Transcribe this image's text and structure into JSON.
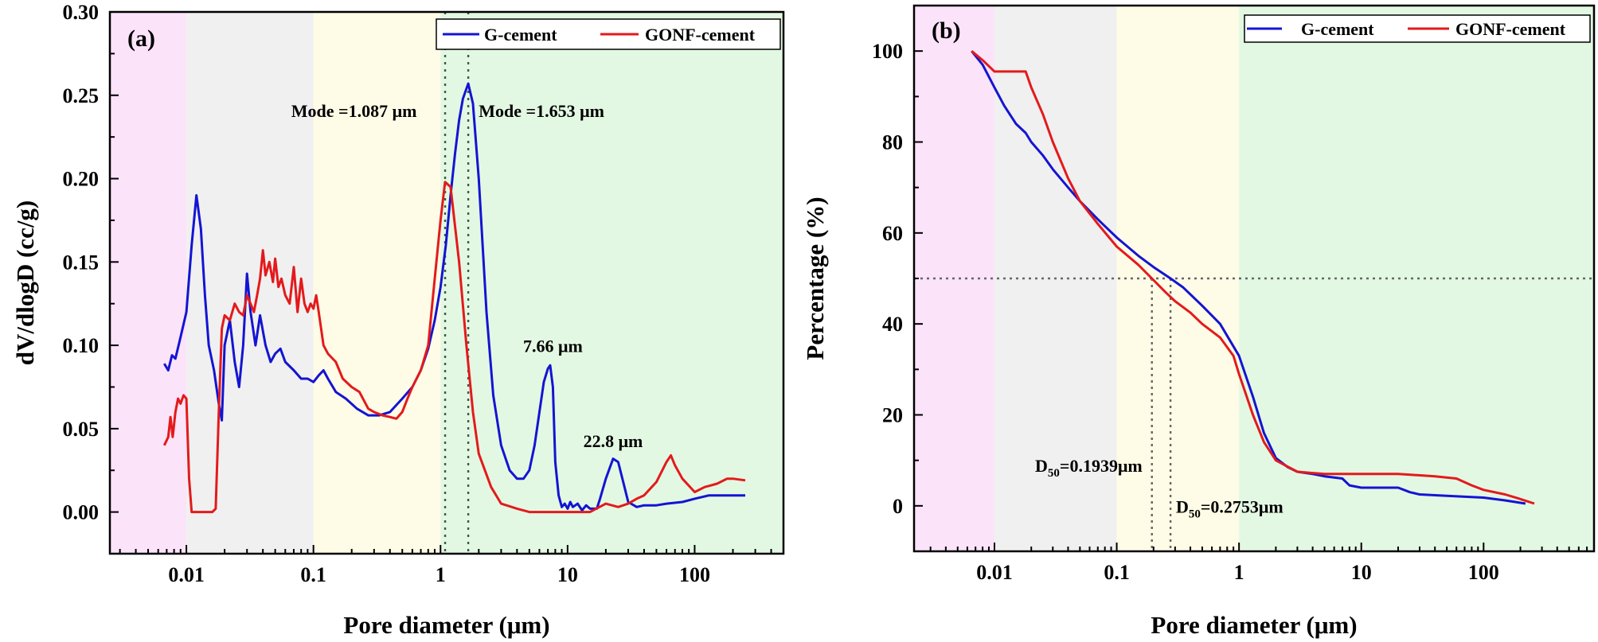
{
  "chart_data": [
    {
      "type": "line",
      "panel_label": "(a)",
      "xlabel": "Pore diameter (μm)",
      "ylabel": "dV/dlogD (cc/g)",
      "xscale": "log",
      "xlim": [
        0.0025,
        500
      ],
      "ylim": [
        -0.025,
        0.3
      ],
      "x_ticks": [
        0.01,
        0.1,
        1,
        10,
        100
      ],
      "x_tick_labels": [
        "0.01",
        "0.1",
        "1",
        "10",
        "100"
      ],
      "y_ticks": [
        0,
        0.05,
        0.1,
        0.15,
        0.2,
        0.25,
        0.3
      ],
      "y_tick_labels": [
        "0.00",
        "0.05",
        "0.10",
        "0.15",
        "0.20",
        "0.25",
        "0.30"
      ],
      "legend_position": "top-right",
      "shaded_regions": [
        {
          "x0": 0.0025,
          "x1": 0.01,
          "color": "#fbe3fa"
        },
        {
          "x0": 0.01,
          "x1": 0.1,
          "color": "#f0f0f0"
        },
        {
          "x0": 0.1,
          "x1": 1,
          "color": "#fefbe6"
        },
        {
          "x0": 1,
          "x1": 500,
          "color": "#e3f8e3"
        }
      ],
      "reference_lines": [
        {
          "orientation": "vertical",
          "x": 1.087
        },
        {
          "orientation": "vertical",
          "x": 1.653
        }
      ],
      "annotations": [
        {
          "text": "Mode =1.087 μm",
          "x": 0.65,
          "y": 0.237,
          "anchor": "end"
        },
        {
          "text": "Mode =1.653 μm",
          "x": 2.0,
          "y": 0.237,
          "anchor": "start"
        },
        {
          "text": "7.66 μm",
          "x": 7.66,
          "y": 0.096,
          "anchor": "middle"
        },
        {
          "text": "22.8 μm",
          "x": 22.8,
          "y": 0.039,
          "anchor": "middle"
        }
      ],
      "series": [
        {
          "name": "G-cement",
          "color": "#1414d2",
          "x": [
            0.0067,
            0.0072,
            0.0077,
            0.0082,
            0.009,
            0.01,
            0.011,
            0.012,
            0.013,
            0.014,
            0.015,
            0.0165,
            0.018,
            0.019,
            0.02,
            0.022,
            0.024,
            0.026,
            0.028,
            0.03,
            0.032,
            0.035,
            0.038,
            0.042,
            0.046,
            0.05,
            0.055,
            0.06,
            0.07,
            0.08,
            0.09,
            0.1,
            0.11,
            0.12,
            0.13,
            0.15,
            0.18,
            0.22,
            0.27,
            0.33,
            0.4,
            0.5,
            0.6,
            0.7,
            0.8,
            0.9,
            1.0,
            1.1,
            1.2,
            1.3,
            1.4,
            1.5,
            1.653,
            1.8,
            2.0,
            2.3,
            2.6,
            3.0,
            3.5,
            4.0,
            4.5,
            5.0,
            5.5,
            6.0,
            6.5,
            7.0,
            7.3,
            7.66,
            8.0,
            8.5,
            9.0,
            9.5,
            10.0,
            10.5,
            11.0,
            12.0,
            13.0,
            14.0,
            15.0,
            16.0,
            17.0,
            18.0,
            20.0,
            22.8,
            25.0,
            27.0,
            30.0,
            35.0,
            40.0,
            50.0,
            60.0,
            80.0,
            100.0,
            130.0,
            160.0,
            200.0,
            250.0
          ],
          "y": [
            0.089,
            0.085,
            0.094,
            0.092,
            0.105,
            0.12,
            0.16,
            0.19,
            0.17,
            0.13,
            0.1,
            0.085,
            0.065,
            0.055,
            0.1,
            0.115,
            0.09,
            0.075,
            0.1,
            0.143,
            0.12,
            0.1,
            0.118,
            0.1,
            0.09,
            0.095,
            0.098,
            0.09,
            0.085,
            0.08,
            0.08,
            0.078,
            0.082,
            0.085,
            0.08,
            0.072,
            0.068,
            0.062,
            0.058,
            0.058,
            0.06,
            0.068,
            0.075,
            0.085,
            0.098,
            0.115,
            0.135,
            0.16,
            0.19,
            0.215,
            0.235,
            0.248,
            0.257,
            0.245,
            0.2,
            0.12,
            0.07,
            0.04,
            0.025,
            0.02,
            0.02,
            0.025,
            0.04,
            0.06,
            0.078,
            0.086,
            0.088,
            0.075,
            0.03,
            0.01,
            0.003,
            0.005,
            0.002,
            0.006,
            0.003,
            0.005,
            0.001,
            0.004,
            0.002,
            0.002,
            0.002,
            0.008,
            0.02,
            0.032,
            0.03,
            0.02,
            0.006,
            0.003,
            0.004,
            0.004,
            0.005,
            0.006,
            0.008,
            0.01,
            0.01,
            0.01,
            0.01
          ]
        },
        {
          "name": "GONF-cement",
          "color": "#e31a1c",
          "x": [
            0.0067,
            0.0072,
            0.0075,
            0.0078,
            0.0082,
            0.0086,
            0.009,
            0.0095,
            0.01,
            0.0105,
            0.011,
            0.012,
            0.013,
            0.014,
            0.015,
            0.016,
            0.017,
            0.018,
            0.019,
            0.02,
            0.022,
            0.024,
            0.026,
            0.028,
            0.03,
            0.032,
            0.034,
            0.036,
            0.038,
            0.04,
            0.042,
            0.045,
            0.048,
            0.05,
            0.053,
            0.056,
            0.06,
            0.065,
            0.07,
            0.075,
            0.08,
            0.085,
            0.09,
            0.095,
            0.1,
            0.105,
            0.11,
            0.12,
            0.13,
            0.15,
            0.17,
            0.2,
            0.23,
            0.27,
            0.3,
            0.35,
            0.4,
            0.45,
            0.5,
            0.55,
            0.6,
            0.7,
            0.8,
            0.9,
            1.0,
            1.087,
            1.2,
            1.4,
            1.6,
            1.8,
            2.0,
            2.5,
            3.0,
            4.0,
            5.0,
            6.0,
            8.0,
            10.0,
            15.0,
            20.0,
            25.0,
            30.0,
            35.0,
            40.0,
            50.0,
            60.0,
            65.0,
            70.0,
            80.0,
            100.0,
            120.0,
            150.0,
            180.0,
            200.0,
            250.0
          ],
          "y": [
            0.04,
            0.045,
            0.057,
            0.045,
            0.06,
            0.068,
            0.065,
            0.07,
            0.068,
            0.02,
            0.0,
            0.0,
            0.0,
            0.0,
            0.0,
            0.0,
            0.002,
            0.06,
            0.11,
            0.118,
            0.115,
            0.125,
            0.12,
            0.118,
            0.13,
            0.125,
            0.12,
            0.13,
            0.14,
            0.157,
            0.142,
            0.15,
            0.138,
            0.152,
            0.135,
            0.14,
            0.13,
            0.125,
            0.147,
            0.12,
            0.14,
            0.125,
            0.12,
            0.125,
            0.122,
            0.13,
            0.12,
            0.1,
            0.095,
            0.09,
            0.08,
            0.075,
            0.072,
            0.062,
            0.06,
            0.058,
            0.057,
            0.056,
            0.06,
            0.068,
            0.075,
            0.085,
            0.1,
            0.14,
            0.175,
            0.198,
            0.195,
            0.15,
            0.1,
            0.06,
            0.035,
            0.015,
            0.005,
            0.002,
            0.0,
            0.0,
            0.0,
            0.0,
            0.0,
            0.005,
            0.003,
            0.005,
            0.008,
            0.01,
            0.018,
            0.03,
            0.034,
            0.028,
            0.02,
            0.012,
            0.015,
            0.017,
            0.02,
            0.02,
            0.019
          ]
        }
      ]
    },
    {
      "type": "line",
      "panel_label": "(b)",
      "xlabel": "Pore diameter (μm)",
      "ylabel": "Percentage (%)",
      "xscale": "log",
      "xlim": [
        0.0022,
        800
      ],
      "ylim": [
        -10,
        110
      ],
      "x_ticks": [
        0.01,
        0.1,
        1,
        10,
        100
      ],
      "x_tick_labels": [
        "0.01",
        "0.1",
        "1",
        "10",
        "100"
      ],
      "y_ticks": [
        0,
        20,
        40,
        60,
        80,
        100
      ],
      "y_tick_labels": [
        "0",
        "20",
        "40",
        "60",
        "80",
        "100"
      ],
      "legend_position": "top-right",
      "shaded_regions": [
        {
          "x0": 0.0022,
          "x1": 0.01,
          "color": "#fbe3fa"
        },
        {
          "x0": 0.01,
          "x1": 0.1,
          "color": "#f0f0f0"
        },
        {
          "x0": 0.1,
          "x1": 1,
          "color": "#fefbe6"
        },
        {
          "x0": 1,
          "x1": 800,
          "color": "#e3f8e3"
        }
      ],
      "reference_lines": [
        {
          "orientation": "horizontal",
          "y": 50,
          "x_from": 0.0022,
          "x_to": 800
        },
        {
          "orientation": "vertical",
          "x": 0.1939,
          "y_from": -10,
          "y_to": 50
        },
        {
          "orientation": "vertical",
          "x": 0.2753,
          "y_from": -10,
          "y_to": 50
        }
      ],
      "annotations": [
        {
          "text": "D",
          "subscript": "50",
          "suffix": "=0.1939μm",
          "x": 0.0215,
          "y": 7.5,
          "anchor": "start"
        },
        {
          "text": "D",
          "subscript": "50",
          "suffix": "=0.2753μm",
          "x": 0.305,
          "y": -1.5,
          "anchor": "start"
        }
      ],
      "series": [
        {
          "name": "G-cement",
          "color": "#1414d2",
          "x": [
            0.0065,
            0.008,
            0.01,
            0.012,
            0.015,
            0.018,
            0.02,
            0.025,
            0.03,
            0.04,
            0.05,
            0.07,
            0.1,
            0.15,
            0.2,
            0.2753,
            0.35,
            0.5,
            0.7,
            1.0,
            1.3,
            1.6,
            2.0,
            2.5,
            3.0,
            4.0,
            5.0,
            7.0,
            8.0,
            10.0,
            20.0,
            25.0,
            30.0,
            50.0,
            100.0,
            150.0,
            220.0
          ],
          "y": [
            100,
            97,
            92,
            88,
            84,
            82,
            80,
            77,
            74,
            70,
            67,
            63,
            59,
            55,
            52.5,
            50,
            48,
            44,
            40,
            33,
            24,
            16,
            10.5,
            8.5,
            7.5,
            7,
            6.5,
            6,
            4.5,
            4,
            4,
            3,
            2.5,
            2.2,
            1.8,
            1.2,
            0.5
          ]
        },
        {
          "name": "GONF-cement",
          "color": "#e31a1c",
          "x": [
            0.0065,
            0.008,
            0.01,
            0.012,
            0.015,
            0.018,
            0.02,
            0.025,
            0.03,
            0.04,
            0.05,
            0.07,
            0.1,
            0.15,
            0.1939,
            0.25,
            0.3,
            0.4,
            0.5,
            0.7,
            0.9,
            1.0,
            1.3,
            1.6,
            2.0,
            3.0,
            5.0,
            10.0,
            20.0,
            40.0,
            60.0,
            80.0,
            100.0,
            150.0,
            200.0,
            260.0
          ],
          "y": [
            100,
            98,
            95.5,
            95.5,
            95.5,
            95.5,
            92,
            86,
            80,
            72,
            67,
            62,
            57,
            53,
            50,
            47,
            45,
            42.5,
            40,
            37,
            33,
            29,
            20,
            14,
            10,
            7.5,
            7,
            7,
            7,
            6.5,
            6,
            4.5,
            3.5,
            2.5,
            1.5,
            0.5
          ]
        }
      ]
    }
  ]
}
